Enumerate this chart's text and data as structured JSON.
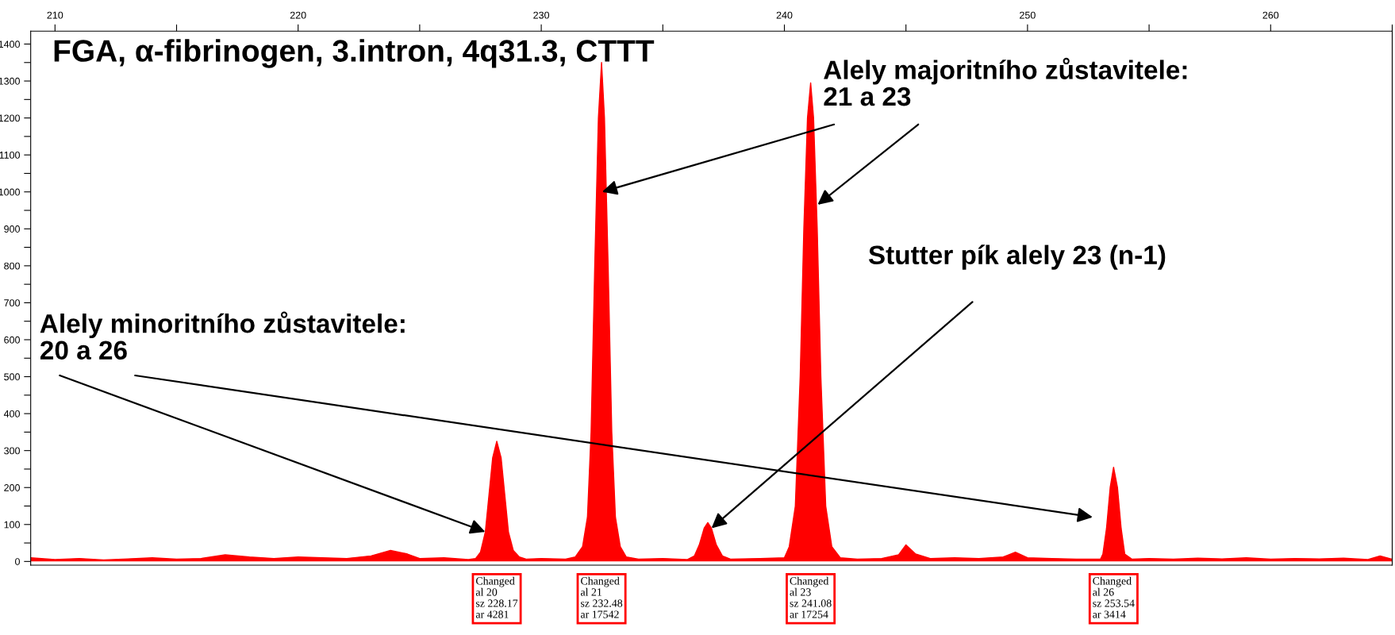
{
  "chart_data": {
    "type": "area",
    "title": "FGA, α-fibrinogen, 3.intron, 4q31.3, CTTT",
    "series": [
      {
        "color": "#ff0000",
        "x": [
          209,
          210,
          211,
          212,
          213,
          214,
          215,
          216,
          217,
          218,
          219,
          220,
          221,
          222,
          223,
          223.8,
          224.5,
          225,
          226,
          227,
          227.3,
          227.5,
          227.7,
          227.85,
          228.0,
          228.17,
          228.35,
          228.5,
          228.65,
          228.85,
          229.1,
          229.4,
          230,
          231,
          231.4,
          231.7,
          231.9,
          232.05,
          232.2,
          232.35,
          232.48,
          232.6,
          232.75,
          232.9,
          233.05,
          233.25,
          233.5,
          234,
          235,
          236,
          236.3,
          236.5,
          236.7,
          236.85,
          237.0,
          237.2,
          237.45,
          237.8,
          239,
          240,
          240.2,
          240.45,
          240.65,
          240.8,
          240.95,
          241.08,
          241.2,
          241.35,
          241.5,
          241.7,
          241.95,
          242.3,
          243,
          244,
          244.7,
          245,
          245.4,
          246,
          247,
          248,
          249,
          249.5,
          250,
          251,
          252,
          253,
          253.1,
          253.25,
          253.4,
          253.54,
          253.7,
          253.85,
          254.0,
          254.3,
          255,
          256,
          257,
          258,
          259,
          260,
          261,
          262,
          263,
          264,
          264.5,
          265
        ],
        "values": [
          10,
          5,
          8,
          4,
          7,
          10,
          6,
          8,
          18,
          12,
          8,
          12,
          10,
          8,
          15,
          30,
          20,
          8,
          10,
          5,
          8,
          25,
          80,
          180,
          280,
          325,
          280,
          180,
          80,
          30,
          12,
          6,
          8,
          6,
          12,
          40,
          120,
          350,
          800,
          1200,
          1350,
          1200,
          800,
          350,
          120,
          40,
          12,
          6,
          8,
          5,
          15,
          45,
          90,
          105,
          90,
          45,
          15,
          6,
          8,
          10,
          40,
          150,
          500,
          900,
          1200,
          1295,
          1200,
          900,
          500,
          150,
          40,
          10,
          6,
          8,
          18,
          45,
          20,
          8,
          10,
          8,
          12,
          25,
          10,
          8,
          6,
          6,
          20,
          90,
          200,
          255,
          200,
          90,
          20,
          6,
          8,
          6,
          9,
          7,
          10,
          6,
          8,
          7,
          9,
          5,
          15,
          6
        ]
      }
    ],
    "xlim": [
      209,
      265
    ],
    "xticks": [
      210,
      {
        "value": 215,
        "label": null
      },
      220,
      {
        "value": 225,
        "label": null
      },
      230,
      {
        "value": 235,
        "label": null
      },
      240,
      {
        "value": 245,
        "label": null
      },
      250,
      {
        "value": 255,
        "label": null
      },
      260,
      {
        "value": 265,
        "label": null
      }
    ],
    "ylim": [
      -10,
      1435
    ],
    "yticks": [
      0,
      {
        "value": 50,
        "label": null
      },
      100,
      {
        "value": 150,
        "label": null
      },
      200,
      {
        "value": 250,
        "label": null
      },
      300,
      {
        "value": 350,
        "label": null
      },
      400,
      {
        "value": 450,
        "label": null
      },
      500,
      {
        "value": 550,
        "label": null
      },
      600,
      {
        "value": 650,
        "label": null
      },
      700,
      {
        "value": 750,
        "label": null
      },
      800,
      {
        "value": 850,
        "label": null
      },
      900,
      {
        "value": 950,
        "label": null
      },
      1000,
      {
        "value": 1050,
        "label": null
      },
      1100,
      {
        "value": 1150,
        "label": null
      },
      1200,
      {
        "value": 1250,
        "label": null
      },
      1300,
      {
        "value": 1350,
        "label": null
      },
      1400
    ],
    "grid": false,
    "annotations": [
      {
        "text": "Alely majoritního zůstavitele:\n21 a 23",
        "x": 232.5,
        "y": 1000
      },
      {
        "text": "Stutter pík alely 23 (n-1)",
        "x": 237.0,
        "y": 90
      },
      {
        "text": "Alely minoritního zůstavitele:\n20 a 26",
        "x": 227.7,
        "y": 80
      },
      {
        "text": "Changed\nal 20\nsz 228.17\nar 4281",
        "x": 228.17,
        "y": 0
      },
      {
        "text": "Changed\nal 21\nsz 232.48\nar 17542",
        "x": 232.48,
        "y": 0
      },
      {
        "text": "Changed\nal 23\nsz 241.08\nar 17254",
        "x": 241.08,
        "y": 0
      },
      {
        "text": "Changed\nal 26\nsz 253.54\nar 3414",
        "x": 253.54,
        "y": 0
      }
    ]
  }
}
